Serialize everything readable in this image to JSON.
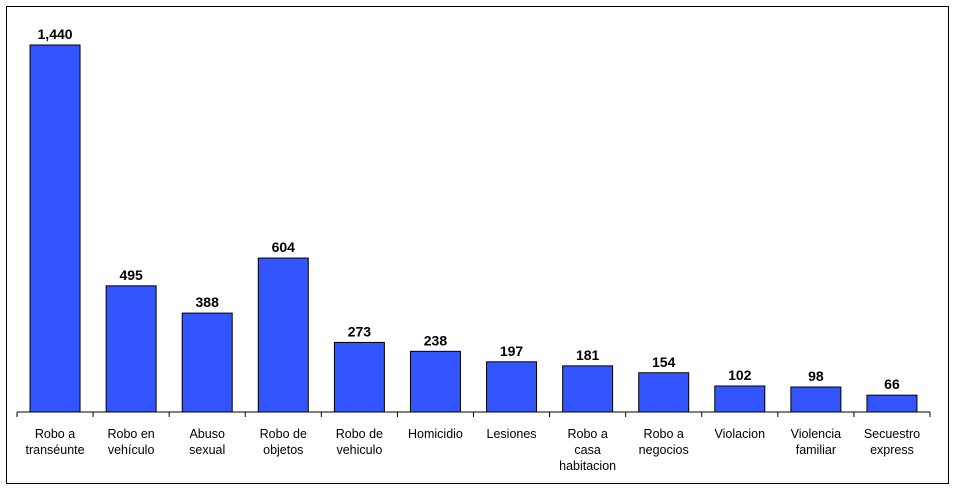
{
  "chart_data": {
    "type": "bar",
    "categories": [
      [
        "Robo a",
        "transéunte"
      ],
      [
        "Robo en",
        "vehículo"
      ],
      [
        "Abuso",
        "sexual"
      ],
      [
        "Robo de",
        "objetos"
      ],
      [
        "Robo de",
        "vehiculo"
      ],
      [
        "Homicidio"
      ],
      [
        "Lesiones"
      ],
      [
        "Robo a",
        "casa",
        "habitacion"
      ],
      [
        "Robo a",
        "negocios"
      ],
      [
        "Violacion"
      ],
      [
        "Violencia",
        "familiar"
      ],
      [
        "Secuestro",
        "express"
      ]
    ],
    "values": [
      1440,
      495,
      388,
      604,
      273,
      238,
      197,
      181,
      154,
      102,
      98,
      66
    ],
    "value_labels": [
      "1,440",
      "495",
      "388",
      "604",
      "273",
      "238",
      "197",
      "181",
      "154",
      "102",
      "98",
      "66"
    ],
    "title": "",
    "xlabel": "",
    "ylabel": "",
    "ylim": [
      0,
      1440
    ],
    "grid": false,
    "legend": "none",
    "colors": {
      "bar_fill": "#3355ff",
      "bar_stroke": "#000000",
      "axis": "#000000"
    }
  }
}
